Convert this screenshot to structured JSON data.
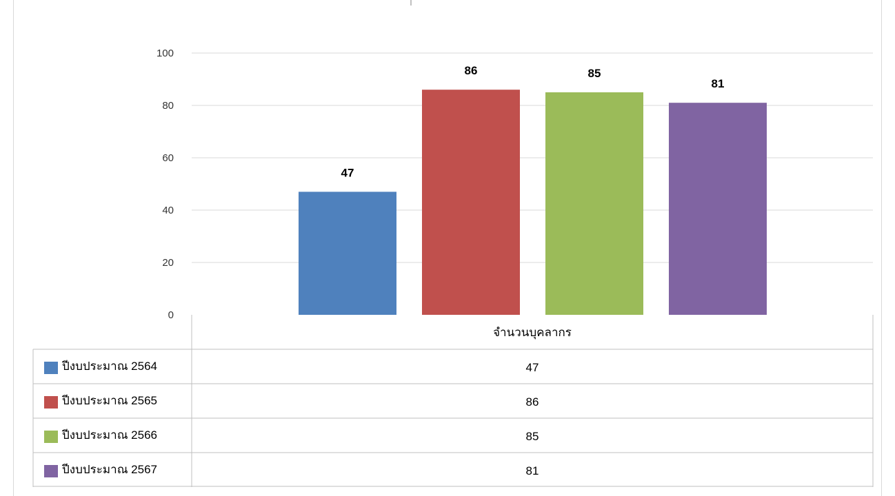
{
  "chart_data": {
    "type": "bar",
    "categories": [
      "จำนวนบุคลากร"
    ],
    "series": [
      {
        "name": "ปีงบประมาณ 2564",
        "values": [
          47
        ],
        "color": "#4f81bd"
      },
      {
        "name": "ปีงบประมาณ 2565",
        "values": [
          86
        ],
        "color": "#c0504d"
      },
      {
        "name": "ปีงบประมาณ 2566",
        "values": [
          85
        ],
        "color": "#9bbb59"
      },
      {
        "name": "ปีงบประมาณ 2567",
        "values": [
          81
        ],
        "color": "#8064a2"
      }
    ],
    "ylim": [
      0,
      100
    ],
    "yticks": [
      0,
      20,
      40,
      60,
      80,
      100
    ],
    "grid": true,
    "data_labels": true,
    "legend": "data-table-bottom"
  }
}
